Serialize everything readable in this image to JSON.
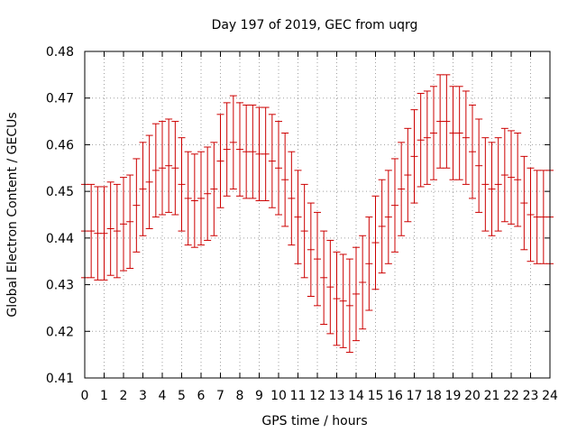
{
  "chart_data": {
    "type": "errorbar",
    "title": "Day 197 of 2019, GEC from uqrg",
    "xlabel": "GPS time / hours",
    "ylabel": "Global Electron Content / GECUs",
    "xlim": [
      0,
      24
    ],
    "ylim": [
      0.41,
      0.48
    ],
    "x_ticks": [
      "0",
      "1",
      "2",
      "3",
      "4",
      "5",
      "6",
      "7",
      "8",
      "9",
      "10",
      "11",
      "12",
      "13",
      "14",
      "15",
      "16",
      "17",
      "18",
      "19",
      "20",
      "21",
      "22",
      "23",
      "24"
    ],
    "y_ticks": [
      "0.41",
      "0.42",
      "0.43",
      "0.44",
      "0.45",
      "0.46",
      "0.47",
      "0.48"
    ],
    "grid": true,
    "series_color": "#cc0000",
    "error": 0.01,
    "x": [
      0,
      0.333,
      0.667,
      1,
      1.333,
      1.667,
      2,
      2.333,
      2.667,
      3,
      3.333,
      3.667,
      4,
      4.333,
      4.667,
      5,
      5.333,
      5.667,
      6,
      6.333,
      6.667,
      7,
      7.333,
      7.667,
      8,
      8.333,
      8.667,
      9,
      9.333,
      9.667,
      10,
      10.333,
      10.667,
      11,
      11.333,
      11.667,
      12,
      12.333,
      12.667,
      13,
      13.333,
      13.667,
      14,
      14.333,
      14.667,
      15,
      15.333,
      15.667,
      16,
      16.333,
      16.667,
      17,
      17.333,
      17.667,
      18,
      18.333,
      18.667,
      19,
      19.333,
      19.667,
      20,
      20.333,
      20.667,
      21,
      21.333,
      21.667,
      22,
      22.333,
      22.667,
      23,
      23.333,
      23.667,
      24
    ],
    "y": [
      0.4415,
      0.4415,
      0.441,
      0.441,
      0.442,
      0.4415,
      0.443,
      0.4435,
      0.447,
      0.4505,
      0.452,
      0.4545,
      0.455,
      0.4555,
      0.455,
      0.4515,
      0.4485,
      0.448,
      0.4485,
      0.4495,
      0.4505,
      0.4565,
      0.459,
      0.4605,
      0.459,
      0.4585,
      0.4585,
      0.458,
      0.458,
      0.4565,
      0.455,
      0.4525,
      0.4485,
      0.4445,
      0.4415,
      0.4375,
      0.4355,
      0.4315,
      0.4295,
      0.427,
      0.4265,
      0.4255,
      0.428,
      0.4305,
      0.4345,
      0.439,
      0.4425,
      0.4445,
      0.447,
      0.4505,
      0.4535,
      0.4575,
      0.461,
      0.4615,
      0.4625,
      0.465,
      0.465,
      0.4625,
      0.4625,
      0.4615,
      0.4585,
      0.4555,
      0.4515,
      0.4505,
      0.4515,
      0.4535,
      0.453,
      0.4525,
      0.4475,
      0.445,
      0.4445,
      0.4445,
      0.4445
    ]
  }
}
